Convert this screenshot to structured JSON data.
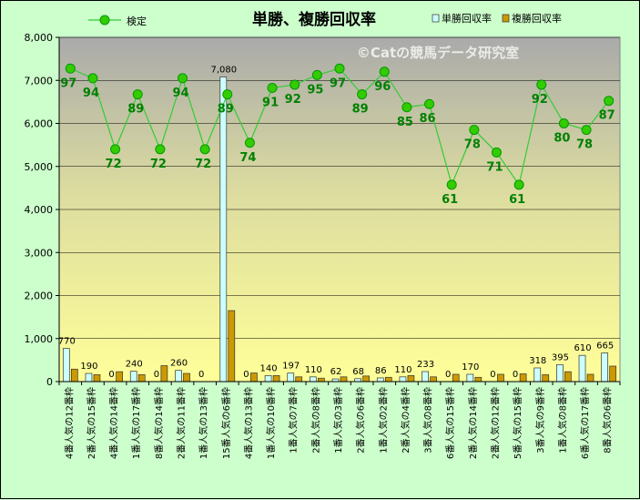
{
  "chart_data": {
    "type": "bar",
    "title": "単勝、複勝回収率",
    "watermark": "©Catの競馬データ研究室",
    "categories": [
      "4番人気の12番枠",
      "2番人気の15番枠",
      "4番人気の14番枠",
      "1番人気の17番枠",
      "8番人気の14番枠",
      "2番人気の11番枠",
      "1番人気の13番枠",
      "15番人気の6番枠",
      "4番人気の13番枠",
      "1番人気の10番枠",
      "1番人気の7番枠",
      "2番人気の8番枠",
      "1番人気の3番枠",
      "2番人気の6番枠",
      "1番人気の2番枠",
      "2番人気の4番枠",
      "3番人気の8番枠",
      "6番人気の15番枠",
      "2番人気の14番枠",
      "2番人気の12番枠",
      "5番人気の15番枠",
      "3番人気の9番枠",
      "1番人気の8番枠",
      "6番人気の17番枠",
      "8番人気の6番枠"
    ],
    "series": [
      {
        "name": "単勝回収率",
        "type": "bar",
        "color": "#ccffff",
        "values": [
          770,
          190,
          0,
          240,
          0,
          260,
          0,
          7080,
          0,
          140,
          197,
          110,
          62,
          68,
          86,
          110,
          233,
          0,
          170,
          0,
          0,
          318,
          395,
          610,
          665
        ],
        "labels": [
          "770",
          "190",
          "0",
          "240",
          "0",
          "260",
          "0",
          "7,080",
          "0",
          "140",
          "197",
          "110",
          "62",
          "68",
          "86",
          "110",
          "233",
          "0",
          "170",
          "0",
          "0",
          "318",
          "395",
          "610",
          "665"
        ]
      },
      {
        "name": "複勝回収率",
        "type": "bar",
        "color": "#cc9900",
        "values": [
          290,
          160,
          230,
          160,
          370,
          190,
          0,
          1650,
          200,
          140,
          110,
          80,
          110,
          130,
          100,
          140,
          110,
          170,
          100,
          170,
          180,
          160,
          230,
          170,
          360
        ]
      },
      {
        "name": "検定",
        "type": "line",
        "color": "#009900",
        "values": [
          97,
          94,
          72,
          89,
          72,
          94,
          72,
          89,
          74,
          91,
          92,
          95,
          97,
          89,
          96,
          85,
          86,
          61,
          78,
          71,
          61,
          92,
          80,
          78,
          87
        ]
      }
    ],
    "ylim": [
      0,
      8000
    ],
    "yticks": [
      "0",
      "1,000",
      "2,000",
      "3,000",
      "4,000",
      "5,000",
      "6,000",
      "7,000",
      "8,000"
    ],
    "line_scale": "検定 values are plotted on the primary axis as value × 75 (e.g. 97 at ≈7,275)",
    "grid": true,
    "legend_position": "top"
  }
}
